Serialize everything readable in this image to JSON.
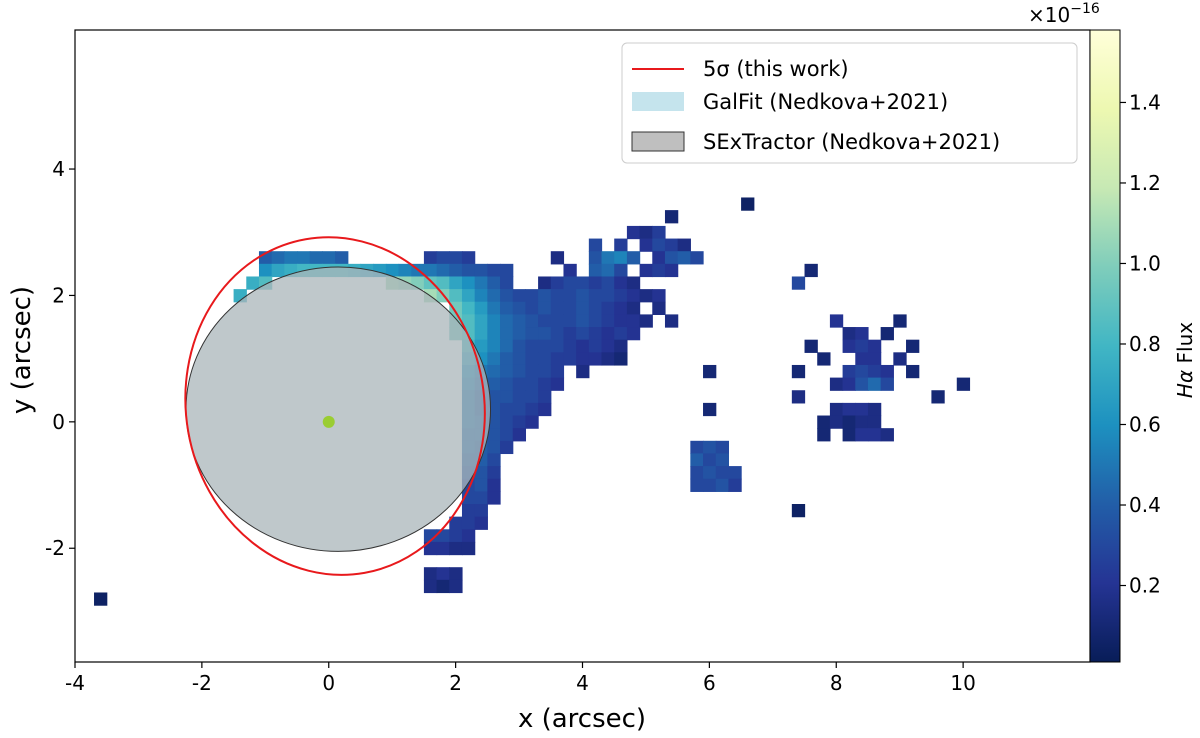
{
  "chart_data": {
    "type": "heatmap",
    "xlabel": "x (arcsec)",
    "ylabel": "y (arcsec)",
    "xlim": [
      -4,
      12
    ],
    "ylim": [
      -3.8,
      6.2
    ],
    "x_ticks": [
      -4,
      -2,
      0,
      2,
      4,
      6,
      8,
      10
    ],
    "x_tick_labels": [
      "-4",
      "-2",
      "0",
      "2",
      "4",
      "6",
      "8",
      "10"
    ],
    "y_ticks": [
      -2,
      0,
      2,
      4
    ],
    "y_tick_labels": [
      "-2",
      "0",
      "2",
      "4"
    ],
    "colorbar": {
      "label_prefix": "Hα",
      "label_suffix": " Flux",
      "multiplier_text": "×10",
      "multiplier_exponent": "−16",
      "range": [
        0.01,
        1.58
      ],
      "ticks": [
        0.2,
        0.4,
        0.6,
        0.8,
        1.0,
        1.2,
        1.4
      ],
      "tick_labels": [
        "0.2",
        "0.4",
        "0.6",
        "0.8",
        "1.0",
        "1.2",
        "1.4"
      ],
      "colormap": "YlGnBu"
    },
    "legend": {
      "placement": "upper right",
      "entries": [
        {
          "label": "5σ (this work)",
          "kind": "line",
          "color": "#e8191c"
        },
        {
          "label": "GalFit (Nedkova+2021)",
          "kind": "patch",
          "color": "#add8e6"
        },
        {
          "label": "SExTractor (Nedkova+2021)",
          "kind": "patch",
          "color": "#a9a9a9"
        }
      ]
    },
    "ellipses": [
      {
        "name": "5σ (this work)",
        "center": [
          0.1,
          0.25
        ],
        "semi_axes": [
          2.35,
          2.68
        ],
        "rotation_deg": -10,
        "style": "outline",
        "color": "#e8191c"
      },
      {
        "name": "GalFit (Nedkova+2021)",
        "center": [
          0.15,
          0.2
        ],
        "semi_axes": [
          2.4,
          2.25
        ],
        "rotation_deg": 0,
        "style": "filled",
        "color": "#add8e6"
      },
      {
        "name": "SExTractor (Nedkova+2021)",
        "center": [
          0.15,
          0.2
        ],
        "semi_axes": [
          2.4,
          2.25
        ],
        "rotation_deg": 0,
        "style": "filled",
        "color": "#a9a9a9"
      }
    ],
    "center_marker": {
      "x": 0,
      "y": 0,
      "color": "#9acd32"
    },
    "pixel_size_arcsec": 0.2,
    "pixels": [
      [
        -3.6,
        -2.8,
        0.05
      ],
      [
        6.6,
        3.45,
        0.05
      ],
      [
        5.4,
        3.25,
        0.1
      ],
      [
        4.8,
        3.0,
        0.2
      ],
      [
        5.0,
        3.0,
        0.15
      ],
      [
        5.2,
        3.0,
        0.25
      ],
      [
        4.2,
        2.8,
        0.3
      ],
      [
        4.6,
        2.8,
        0.25
      ],
      [
        5.0,
        2.8,
        0.2
      ],
      [
        5.2,
        2.8,
        0.3
      ],
      [
        5.4,
        2.8,
        0.25
      ],
      [
        5.6,
        2.8,
        0.15
      ],
      [
        -1.0,
        2.6,
        0.4
      ],
      [
        -0.8,
        2.6,
        0.45
      ],
      [
        -0.6,
        2.6,
        0.5
      ],
      [
        -0.4,
        2.6,
        0.5
      ],
      [
        -0.2,
        2.6,
        0.45
      ],
      [
        0.0,
        2.6,
        0.45
      ],
      [
        0.2,
        2.6,
        0.4
      ],
      [
        1.6,
        2.6,
        0.25
      ],
      [
        1.8,
        2.6,
        0.3
      ],
      [
        2.0,
        2.6,
        0.3
      ],
      [
        2.2,
        2.6,
        0.25
      ],
      [
        3.6,
        2.6,
        0.15
      ],
      [
        4.2,
        2.6,
        0.35
      ],
      [
        4.4,
        2.6,
        0.5
      ],
      [
        4.6,
        2.6,
        0.55
      ],
      [
        4.8,
        2.6,
        0.4
      ],
      [
        5.2,
        2.6,
        0.2
      ],
      [
        5.4,
        2.6,
        0.35
      ],
      [
        5.6,
        2.6,
        0.4
      ],
      [
        5.8,
        2.6,
        0.3
      ],
      [
        -1.0,
        2.4,
        0.6
      ],
      [
        -0.8,
        2.4,
        0.7
      ],
      [
        -0.6,
        2.4,
        0.75
      ],
      [
        -0.4,
        2.4,
        0.8
      ],
      [
        -0.2,
        2.4,
        0.8
      ],
      [
        0.0,
        2.4,
        0.8
      ],
      [
        0.2,
        2.4,
        0.8
      ],
      [
        0.4,
        2.4,
        0.75
      ],
      [
        0.6,
        2.4,
        0.7
      ],
      [
        0.8,
        2.4,
        0.65
      ],
      [
        1.0,
        2.4,
        0.6
      ],
      [
        1.2,
        2.4,
        0.55
      ],
      [
        1.4,
        2.4,
        0.5
      ],
      [
        1.6,
        2.4,
        0.5
      ],
      [
        1.8,
        2.4,
        0.45
      ],
      [
        2.0,
        2.4,
        0.4
      ],
      [
        2.2,
        2.4,
        0.35
      ],
      [
        2.4,
        2.4,
        0.35
      ],
      [
        2.6,
        2.4,
        0.3
      ],
      [
        2.8,
        2.4,
        0.3
      ],
      [
        3.8,
        2.4,
        0.2
      ],
      [
        4.2,
        2.4,
        0.4
      ],
      [
        4.4,
        2.4,
        0.45
      ],
      [
        4.6,
        2.4,
        0.3
      ],
      [
        5.0,
        2.4,
        0.2
      ],
      [
        5.2,
        2.4,
        0.25
      ],
      [
        5.4,
        2.4,
        0.2
      ],
      [
        7.6,
        2.4,
        0.1
      ],
      [
        -1.2,
        2.2,
        0.75
      ],
      [
        -1.0,
        2.2,
        0.85
      ],
      [
        1.0,
        2.2,
        1.1
      ],
      [
        1.2,
        2.2,
        1.05
      ],
      [
        1.4,
        2.2,
        1.0
      ],
      [
        1.6,
        2.2,
        0.9
      ],
      [
        1.8,
        2.2,
        0.85
      ],
      [
        2.0,
        2.2,
        0.7
      ],
      [
        2.2,
        2.2,
        0.6
      ],
      [
        2.4,
        2.2,
        0.5
      ],
      [
        2.6,
        2.2,
        0.4
      ],
      [
        2.8,
        2.2,
        0.3
      ],
      [
        3.4,
        2.2,
        0.15
      ],
      [
        3.6,
        2.2,
        0.25
      ],
      [
        3.8,
        2.2,
        0.3
      ],
      [
        4.0,
        2.2,
        0.3
      ],
      [
        4.2,
        2.2,
        0.25
      ],
      [
        4.4,
        2.2,
        0.3
      ],
      [
        4.6,
        2.2,
        0.2
      ],
      [
        4.8,
        2.2,
        0.15
      ],
      [
        7.4,
        2.2,
        0.3
      ],
      [
        -1.4,
        2.0,
        0.75
      ],
      [
        1.6,
        2.0,
        1.1
      ],
      [
        1.8,
        2.0,
        1.0
      ],
      [
        2.0,
        2.0,
        0.85
      ],
      [
        2.2,
        2.0,
        0.7
      ],
      [
        2.4,
        2.0,
        0.55
      ],
      [
        2.6,
        2.0,
        0.45
      ],
      [
        2.8,
        2.0,
        0.35
      ],
      [
        3.0,
        2.0,
        0.3
      ],
      [
        3.2,
        2.0,
        0.3
      ],
      [
        3.4,
        2.0,
        0.35
      ],
      [
        3.6,
        2.0,
        0.3
      ],
      [
        3.8,
        2.0,
        0.3
      ],
      [
        4.0,
        2.0,
        0.35
      ],
      [
        4.2,
        2.0,
        0.3
      ],
      [
        4.4,
        2.0,
        0.3
      ],
      [
        4.6,
        2.0,
        0.25
      ],
      [
        4.8,
        2.0,
        0.2
      ],
      [
        5.0,
        2.0,
        0.15
      ],
      [
        5.2,
        2.0,
        0.2
      ],
      [
        2.0,
        1.8,
        0.95
      ],
      [
        2.2,
        1.8,
        0.8
      ],
      [
        2.4,
        1.8,
        0.65
      ],
      [
        2.6,
        1.8,
        0.5
      ],
      [
        2.8,
        1.8,
        0.4
      ],
      [
        3.0,
        1.8,
        0.35
      ],
      [
        3.2,
        1.8,
        0.3
      ],
      [
        3.4,
        1.8,
        0.35
      ],
      [
        3.6,
        1.8,
        0.3
      ],
      [
        3.8,
        1.8,
        0.3
      ],
      [
        4.0,
        1.8,
        0.35
      ],
      [
        4.2,
        1.8,
        0.3
      ],
      [
        4.4,
        1.8,
        0.25
      ],
      [
        4.6,
        1.8,
        0.2
      ],
      [
        4.8,
        1.8,
        0.15
      ],
      [
        5.2,
        1.8,
        0.15
      ],
      [
        2.0,
        1.6,
        0.95
      ],
      [
        2.2,
        1.6,
        0.85
      ],
      [
        2.4,
        1.6,
        0.7
      ],
      [
        2.6,
        1.6,
        0.55
      ],
      [
        2.8,
        1.6,
        0.45
      ],
      [
        3.0,
        1.6,
        0.4
      ],
      [
        3.2,
        1.6,
        0.35
      ],
      [
        3.4,
        1.6,
        0.3
      ],
      [
        3.6,
        1.6,
        0.3
      ],
      [
        3.8,
        1.6,
        0.3
      ],
      [
        4.0,
        1.6,
        0.35
      ],
      [
        4.2,
        1.6,
        0.3
      ],
      [
        4.4,
        1.6,
        0.25
      ],
      [
        4.6,
        1.6,
        0.2
      ],
      [
        4.8,
        1.6,
        0.2
      ],
      [
        5.0,
        1.6,
        0.15
      ],
      [
        5.4,
        1.6,
        0.15
      ],
      [
        8.0,
        1.6,
        0.2
      ],
      [
        9.0,
        1.6,
        0.1
      ],
      [
        2.0,
        1.4,
        0.95
      ],
      [
        2.2,
        1.4,
        0.85
      ],
      [
        2.4,
        1.4,
        0.7
      ],
      [
        2.6,
        1.4,
        0.55
      ],
      [
        2.8,
        1.4,
        0.45
      ],
      [
        3.0,
        1.4,
        0.4
      ],
      [
        3.2,
        1.4,
        0.35
      ],
      [
        3.4,
        1.4,
        0.35
      ],
      [
        3.6,
        1.4,
        0.3
      ],
      [
        3.8,
        1.4,
        0.25
      ],
      [
        4.0,
        1.4,
        0.3
      ],
      [
        4.2,
        1.4,
        0.25
      ],
      [
        4.4,
        1.4,
        0.2
      ],
      [
        4.6,
        1.4,
        0.25
      ],
      [
        4.8,
        1.4,
        0.2
      ],
      [
        8.2,
        1.4,
        0.15
      ],
      [
        8.4,
        1.4,
        0.2
      ],
      [
        8.8,
        1.4,
        0.1
      ],
      [
        2.2,
        1.2,
        0.8
      ],
      [
        2.4,
        1.2,
        0.65
      ],
      [
        2.6,
        1.2,
        0.55
      ],
      [
        2.8,
        1.2,
        0.45
      ],
      [
        3.0,
        1.2,
        0.35
      ],
      [
        3.2,
        1.2,
        0.3
      ],
      [
        3.4,
        1.2,
        0.3
      ],
      [
        3.6,
        1.2,
        0.3
      ],
      [
        3.8,
        1.2,
        0.25
      ],
      [
        4.0,
        1.2,
        0.2
      ],
      [
        4.2,
        1.2,
        0.25
      ],
      [
        4.4,
        1.2,
        0.2
      ],
      [
        4.6,
        1.2,
        0.15
      ],
      [
        7.6,
        1.2,
        0.1
      ],
      [
        8.2,
        1.2,
        0.2
      ],
      [
        8.4,
        1.2,
        0.25
      ],
      [
        8.6,
        1.2,
        0.2
      ],
      [
        9.2,
        1.2,
        0.1
      ],
      [
        2.2,
        1.0,
        0.7
      ],
      [
        2.4,
        1.0,
        0.6
      ],
      [
        2.6,
        1.0,
        0.5
      ],
      [
        2.8,
        1.0,
        0.4
      ],
      [
        3.0,
        1.0,
        0.35
      ],
      [
        3.2,
        1.0,
        0.3
      ],
      [
        3.4,
        1.0,
        0.3
      ],
      [
        3.6,
        1.0,
        0.25
      ],
      [
        3.8,
        1.0,
        0.25
      ],
      [
        4.0,
        1.0,
        0.2
      ],
      [
        4.2,
        1.0,
        0.2
      ],
      [
        4.4,
        1.0,
        0.15
      ],
      [
        4.6,
        1.0,
        0.1
      ],
      [
        7.8,
        1.0,
        0.1
      ],
      [
        8.4,
        1.0,
        0.2
      ],
      [
        8.6,
        1.0,
        0.2
      ],
      [
        9.0,
        1.0,
        0.15
      ],
      [
        2.2,
        0.8,
        0.6
      ],
      [
        2.4,
        0.8,
        0.5
      ],
      [
        2.6,
        0.8,
        0.45
      ],
      [
        2.8,
        0.8,
        0.4
      ],
      [
        3.0,
        0.8,
        0.35
      ],
      [
        3.2,
        0.8,
        0.3
      ],
      [
        3.4,
        0.8,
        0.3
      ],
      [
        3.6,
        0.8,
        0.25
      ],
      [
        4.0,
        0.8,
        0.15
      ],
      [
        6.0,
        0.8,
        0.1
      ],
      [
        7.4,
        0.8,
        0.1
      ],
      [
        8.2,
        0.8,
        0.25
      ],
      [
        8.4,
        0.8,
        0.3
      ],
      [
        8.6,
        0.8,
        0.25
      ],
      [
        8.8,
        0.8,
        0.2
      ],
      [
        9.2,
        0.8,
        0.1
      ],
      [
        2.2,
        0.6,
        0.55
      ],
      [
        2.4,
        0.6,
        0.45
      ],
      [
        2.6,
        0.6,
        0.4
      ],
      [
        2.8,
        0.6,
        0.35
      ],
      [
        3.0,
        0.6,
        0.3
      ],
      [
        3.2,
        0.6,
        0.3
      ],
      [
        3.4,
        0.6,
        0.25
      ],
      [
        3.6,
        0.6,
        0.2
      ],
      [
        8.0,
        0.6,
        0.15
      ],
      [
        8.2,
        0.6,
        0.2
      ],
      [
        8.4,
        0.6,
        0.35
      ],
      [
        8.6,
        0.6,
        0.45
      ],
      [
        8.8,
        0.6,
        0.3
      ],
      [
        10.0,
        0.6,
        0.1
      ],
      [
        2.2,
        0.4,
        0.5
      ],
      [
        2.4,
        0.4,
        0.4
      ],
      [
        2.6,
        0.4,
        0.35
      ],
      [
        2.8,
        0.4,
        0.35
      ],
      [
        3.0,
        0.4,
        0.3
      ],
      [
        3.2,
        0.4,
        0.3
      ],
      [
        3.4,
        0.4,
        0.25
      ],
      [
        7.4,
        0.4,
        0.15
      ],
      [
        9.6,
        0.4,
        0.1
      ],
      [
        2.2,
        0.2,
        0.5
      ],
      [
        2.4,
        0.2,
        0.4
      ],
      [
        2.6,
        0.2,
        0.35
      ],
      [
        2.8,
        0.2,
        0.3
      ],
      [
        3.0,
        0.2,
        0.3
      ],
      [
        3.2,
        0.2,
        0.25
      ],
      [
        3.4,
        0.2,
        0.2
      ],
      [
        6.0,
        0.2,
        0.1
      ],
      [
        8.0,
        0.2,
        0.15
      ],
      [
        8.2,
        0.2,
        0.2
      ],
      [
        8.4,
        0.2,
        0.2
      ],
      [
        8.6,
        0.2,
        0.15
      ],
      [
        2.2,
        0.0,
        0.5
      ],
      [
        2.4,
        0.0,
        0.45
      ],
      [
        2.6,
        0.0,
        0.35
      ],
      [
        2.8,
        0.0,
        0.3
      ],
      [
        3.0,
        0.0,
        0.25
      ],
      [
        3.2,
        0.0,
        0.2
      ],
      [
        7.8,
        0.0,
        0.1
      ],
      [
        8.0,
        0.0,
        0.15
      ],
      [
        8.2,
        0.0,
        0.1
      ],
      [
        8.4,
        0.0,
        0.15
      ],
      [
        8.6,
        0.0,
        0.15
      ],
      [
        2.2,
        -0.2,
        0.45
      ],
      [
        2.4,
        -0.2,
        0.45
      ],
      [
        2.6,
        -0.2,
        0.35
      ],
      [
        2.8,
        -0.2,
        0.3
      ],
      [
        3.0,
        -0.2,
        0.2
      ],
      [
        7.8,
        -0.2,
        0.1
      ],
      [
        8.2,
        -0.2,
        0.1
      ],
      [
        8.4,
        -0.2,
        0.2
      ],
      [
        8.6,
        -0.2,
        0.2
      ],
      [
        8.8,
        -0.2,
        0.15
      ],
      [
        2.2,
        -0.4,
        0.45
      ],
      [
        2.4,
        -0.4,
        0.4
      ],
      [
        2.6,
        -0.4,
        0.35
      ],
      [
        2.8,
        -0.4,
        0.25
      ],
      [
        5.8,
        -0.4,
        0.3
      ],
      [
        6.0,
        -0.4,
        0.35
      ],
      [
        6.2,
        -0.4,
        0.3
      ],
      [
        2.2,
        -0.6,
        0.4
      ],
      [
        2.4,
        -0.6,
        0.4
      ],
      [
        2.6,
        -0.6,
        0.3
      ],
      [
        5.8,
        -0.6,
        0.4
      ],
      [
        6.0,
        -0.6,
        0.3
      ],
      [
        6.2,
        -0.6,
        0.35
      ],
      [
        2.2,
        -0.8,
        0.35
      ],
      [
        2.4,
        -0.8,
        0.35
      ],
      [
        2.6,
        -0.8,
        0.25
      ],
      [
        5.8,
        -0.8,
        0.3
      ],
      [
        6.0,
        -0.8,
        0.35
      ],
      [
        6.2,
        -0.8,
        0.3
      ],
      [
        6.4,
        -0.8,
        0.3
      ],
      [
        2.2,
        -1.0,
        0.3
      ],
      [
        2.4,
        -1.0,
        0.35
      ],
      [
        2.6,
        -1.0,
        0.2
      ],
      [
        5.8,
        -1.0,
        0.3
      ],
      [
        6.0,
        -1.0,
        0.3
      ],
      [
        6.2,
        -1.0,
        0.35
      ],
      [
        6.4,
        -1.0,
        0.25
      ],
      [
        2.2,
        -1.2,
        0.3
      ],
      [
        2.4,
        -1.2,
        0.3
      ],
      [
        2.6,
        -1.2,
        0.2
      ],
      [
        2.2,
        -1.4,
        0.25
      ],
      [
        2.4,
        -1.4,
        0.25
      ],
      [
        7.4,
        -1.4,
        0.05
      ],
      [
        2.0,
        -1.6,
        0.25
      ],
      [
        2.2,
        -1.6,
        0.25
      ],
      [
        2.4,
        -1.6,
        0.2
      ],
      [
        1.6,
        -1.8,
        0.3
      ],
      [
        1.8,
        -1.8,
        0.3
      ],
      [
        2.0,
        -1.8,
        0.25
      ],
      [
        2.2,
        -1.8,
        0.2
      ],
      [
        1.6,
        -2.0,
        0.2
      ],
      [
        1.8,
        -2.0,
        0.2
      ],
      [
        2.0,
        -2.0,
        0.15
      ],
      [
        2.2,
        -2.0,
        0.15
      ],
      [
        1.6,
        -2.4,
        0.15
      ],
      [
        1.8,
        -2.4,
        0.2
      ],
      [
        2.0,
        -2.4,
        0.15
      ],
      [
        1.6,
        -2.6,
        0.15
      ],
      [
        1.8,
        -2.6,
        0.1
      ],
      [
        2.0,
        -2.6,
        0.15
      ]
    ]
  }
}
